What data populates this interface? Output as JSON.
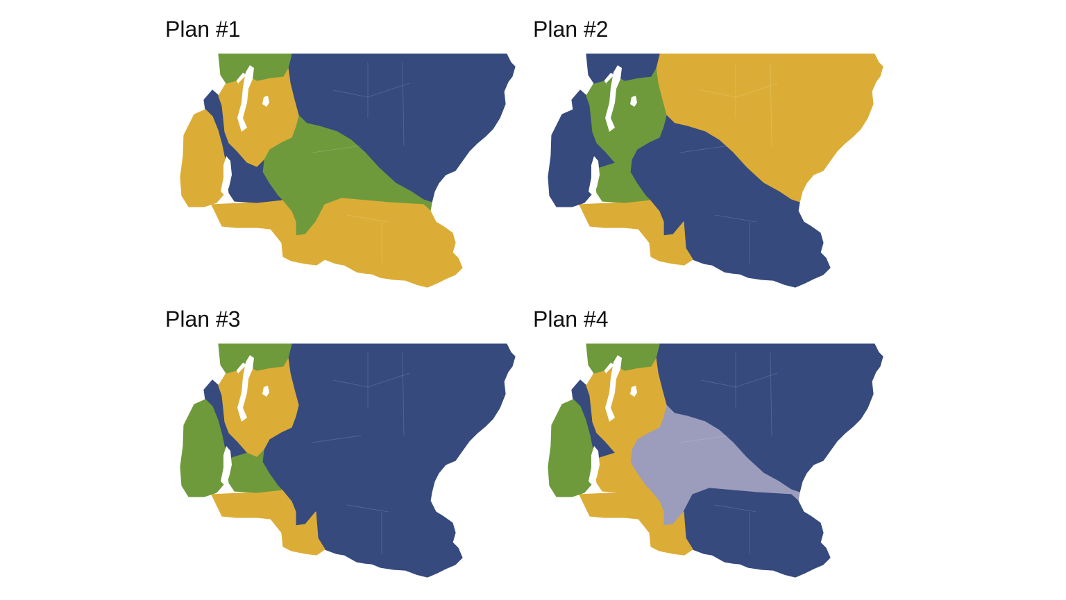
{
  "colors": {
    "navy": "#364a7e",
    "gold": "#dcad36",
    "green": "#6e9a3c",
    "lavender": "#9c9cbc",
    "water": "#ffffff"
  },
  "plans": [
    {
      "title": "Plan #1",
      "regions": {
        "east": "navy",
        "central": "green",
        "south": "gold",
        "southwest": "gold",
        "seattle-north": "green",
        "seattle-south": "gold",
        "eastside": "gold",
        "kitsap": "gold",
        "tacoma": "navy",
        "west-central": "navy"
      }
    },
    {
      "title": "Plan #2",
      "regions": {
        "east": "gold",
        "central": "navy",
        "south": "navy",
        "southwest": "gold",
        "seattle-north": "navy",
        "seattle-south": "green",
        "eastside": "green",
        "kitsap": "navy",
        "tacoma": "green",
        "west-central": "navy"
      }
    },
    {
      "title": "Plan #3",
      "regions": {
        "east": "navy",
        "central": "navy",
        "south": "navy",
        "southwest": "gold",
        "seattle-north": "green",
        "seattle-south": "gold",
        "eastside": "gold",
        "kitsap": "green",
        "tacoma": "green",
        "west-central": "navy"
      }
    },
    {
      "title": "Plan #4",
      "regions": {
        "east": "navy",
        "central": "lavender",
        "south": "navy",
        "southwest": "gold",
        "seattle-north": "green",
        "seattle-south": "gold",
        "eastside": "gold",
        "kitsap": "green",
        "tacoma": "gold",
        "west-central": "navy"
      }
    }
  ]
}
